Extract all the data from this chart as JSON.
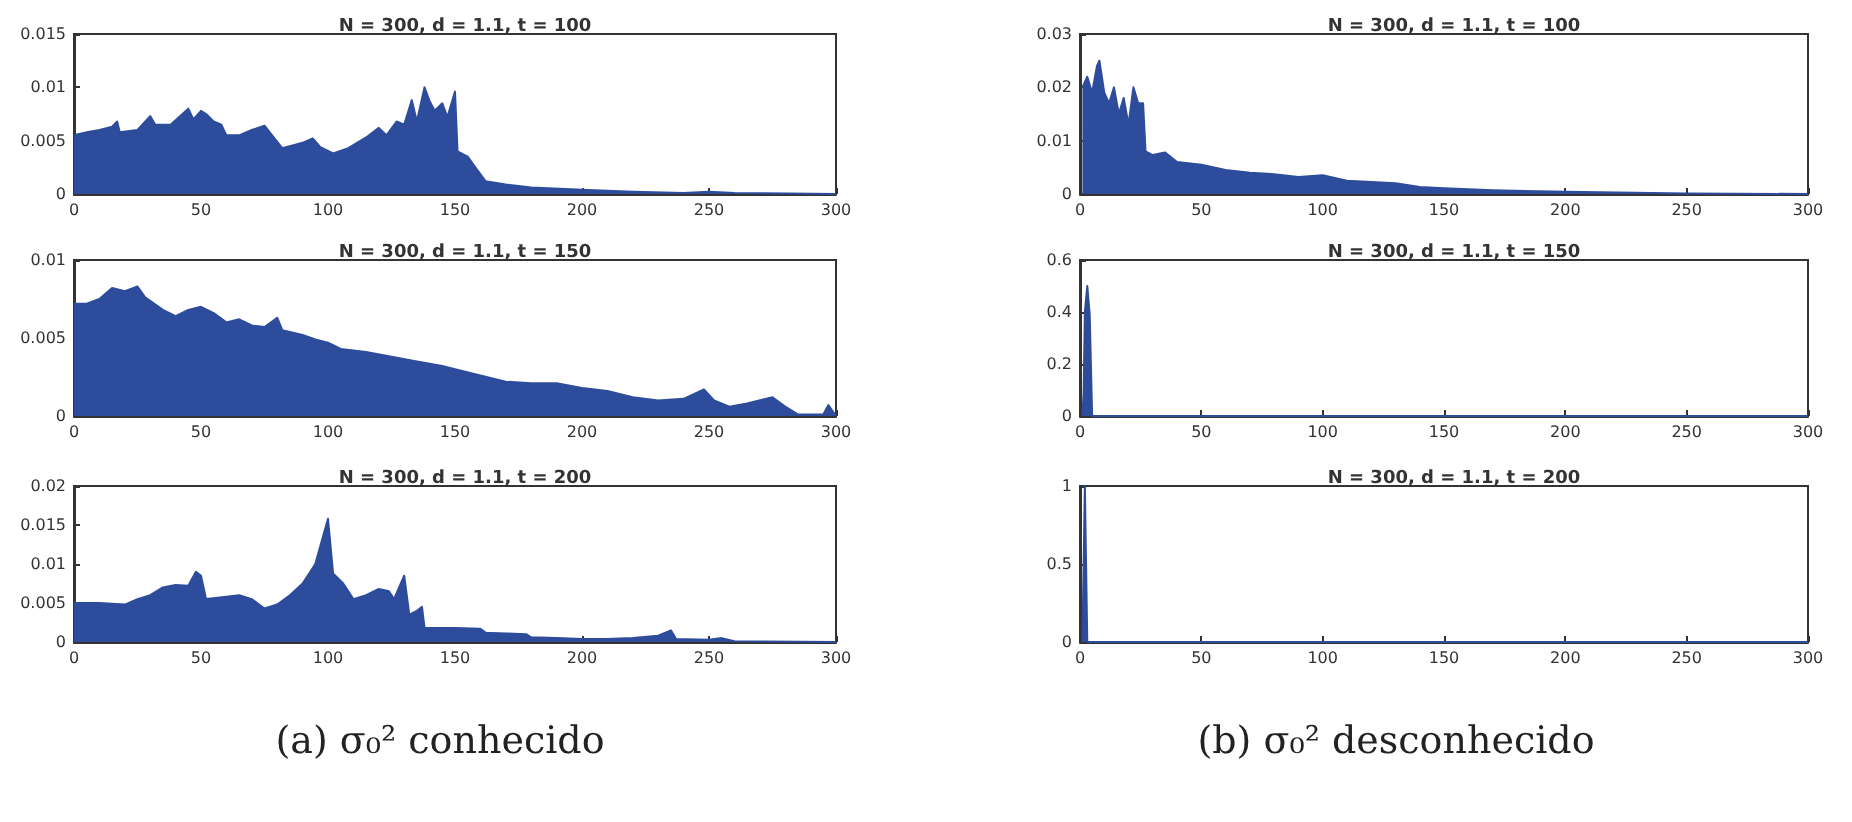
{
  "chart_data": [
    {
      "type": "area",
      "title": "N = 300, d = 1.1, t = 100",
      "color": "#2e4c9c",
      "xlim": [
        0,
        300
      ],
      "xticks": [
        0,
        50,
        100,
        150,
        200,
        250,
        300
      ],
      "ylim": [
        0,
        0.015
      ],
      "yticks": [
        0,
        0.005,
        0.01,
        0.015
      ],
      "x": [
        0,
        5,
        10,
        15,
        17,
        18,
        25,
        30,
        32,
        38,
        45,
        47,
        50,
        52,
        55,
        58,
        60,
        65,
        70,
        75,
        78,
        82,
        90,
        94,
        97,
        102,
        108,
        115,
        120,
        123,
        127,
        130,
        133,
        135,
        138,
        140,
        142,
        145,
        147,
        150,
        151,
        155,
        158,
        162,
        170,
        180,
        200,
        220,
        240,
        250,
        260,
        300
      ],
      "values": [
        0.0055,
        0.0058,
        0.006,
        0.0063,
        0.0068,
        0.0058,
        0.006,
        0.0073,
        0.0065,
        0.0065,
        0.008,
        0.007,
        0.0078,
        0.0075,
        0.0068,
        0.0065,
        0.0055,
        0.0055,
        0.006,
        0.0064,
        0.0055,
        0.0043,
        0.0048,
        0.0052,
        0.0044,
        0.0038,
        0.0043,
        0.0053,
        0.0062,
        0.0055,
        0.0068,
        0.0065,
        0.0088,
        0.0068,
        0.01,
        0.0087,
        0.0078,
        0.0085,
        0.0072,
        0.0096,
        0.004,
        0.0035,
        0.0025,
        0.0012,
        0.0009,
        0.0006,
        0.0004,
        0.0002,
        0.0001,
        0.0002,
        0.0001,
        0
      ]
    },
    {
      "type": "area",
      "title": "N = 300, d = 1.1, t = 150",
      "color": "#2e4c9c",
      "xlim": [
        0,
        300
      ],
      "xticks": [
        0,
        50,
        100,
        150,
        200,
        250,
        300
      ],
      "ylim": [
        0,
        0.01
      ],
      "yticks": [
        0,
        0.005,
        0.01
      ],
      "x": [
        0,
        5,
        10,
        15,
        20,
        25,
        28,
        35,
        40,
        45,
        50,
        55,
        60,
        65,
        70,
        75,
        80,
        82,
        90,
        95,
        100,
        105,
        115,
        125,
        135,
        145,
        150,
        160,
        170,
        180,
        190,
        200,
        210,
        220,
        230,
        240,
        248,
        252,
        258,
        265,
        275,
        280,
        285,
        295,
        297,
        300
      ],
      "values": [
        0.0072,
        0.0072,
        0.0075,
        0.0082,
        0.008,
        0.0083,
        0.0076,
        0.0068,
        0.0064,
        0.0068,
        0.007,
        0.0066,
        0.006,
        0.0062,
        0.0058,
        0.0057,
        0.0063,
        0.0055,
        0.0052,
        0.0049,
        0.0047,
        0.0043,
        0.0041,
        0.0038,
        0.0035,
        0.0032,
        0.003,
        0.0026,
        0.0022,
        0.0021,
        0.0021,
        0.0018,
        0.0016,
        0.0012,
        0.001,
        0.0011,
        0.0017,
        0.001,
        0.0006,
        0.0008,
        0.0012,
        0.0006,
        0.0001,
        0.0001,
        0.0007,
        0
      ]
    },
    {
      "type": "area",
      "title": "N = 300, d = 1.1, t = 200",
      "color": "#2e4c9c",
      "xlim": [
        0,
        300
      ],
      "xticks": [
        0,
        50,
        100,
        150,
        200,
        250,
        300
      ],
      "ylim": [
        0,
        0.02
      ],
      "yticks": [
        0,
        0.005,
        0.01,
        0.015,
        0.02
      ],
      "annotations": [
        "(a) σ₀² conhecido"
      ],
      "x": [
        0,
        10,
        20,
        25,
        30,
        35,
        40,
        45,
        48,
        50,
        52,
        60,
        65,
        70,
        75,
        80,
        85,
        90,
        95,
        98,
        100,
        102,
        106,
        110,
        115,
        120,
        124,
        126,
        130,
        132,
        135,
        137,
        138,
        150,
        160,
        162,
        170,
        178,
        180,
        190,
        200,
        210,
        220,
        230,
        235,
        237,
        250,
        255,
        260,
        300
      ],
      "values": [
        0.005,
        0.005,
        0.0048,
        0.0055,
        0.006,
        0.007,
        0.0073,
        0.0072,
        0.009,
        0.0085,
        0.0055,
        0.0058,
        0.006,
        0.0055,
        0.0043,
        0.0048,
        0.006,
        0.0075,
        0.01,
        0.0135,
        0.0158,
        0.0088,
        0.0075,
        0.0055,
        0.006,
        0.0068,
        0.0065,
        0.0055,
        0.0085,
        0.0035,
        0.004,
        0.0045,
        0.0018,
        0.0018,
        0.0017,
        0.0012,
        0.0011,
        0.001,
        0.0006,
        0.0005,
        0.0004,
        0.0004,
        0.0005,
        0.0008,
        0.0015,
        0.0004,
        0.0003,
        0.0005,
        0.0001,
        0
      ]
    },
    {
      "type": "area",
      "title": "N = 300, d = 1.1, t = 100",
      "color": "#2e4c9c",
      "xlim": [
        0,
        300
      ],
      "xticks": [
        0,
        50,
        100,
        150,
        200,
        250,
        300
      ],
      "ylim": [
        0,
        0.03
      ],
      "yticks": [
        0,
        0.01,
        0.02,
        0.03
      ],
      "x": [
        1,
        3,
        5,
        7,
        8,
        10,
        12,
        14,
        16,
        18,
        20,
        22,
        24,
        26,
        27,
        30,
        35,
        40,
        50,
        60,
        70,
        80,
        90,
        100,
        110,
        130,
        140,
        150,
        170,
        200,
        250,
        300
      ],
      "values": [
        0.02,
        0.022,
        0.019,
        0.024,
        0.025,
        0.019,
        0.017,
        0.02,
        0.015,
        0.018,
        0.013,
        0.02,
        0.017,
        0.017,
        0.008,
        0.0073,
        0.0078,
        0.006,
        0.0055,
        0.0045,
        0.004,
        0.0037,
        0.0032,
        0.0035,
        0.0025,
        0.002,
        0.0013,
        0.0011,
        0.0007,
        0.0004,
        0.0001,
        0
      ]
    },
    {
      "type": "area",
      "title": "N = 300, d = 1.1, t = 150",
      "color": "#2e4c9c",
      "xlim": [
        0,
        300
      ],
      "xticks": [
        0,
        50,
        100,
        150,
        200,
        250,
        300
      ],
      "ylim": [
        0,
        0.6
      ],
      "yticks": [
        0,
        0.2,
        0.4,
        0.6
      ],
      "x": [
        1,
        1.5,
        2,
        3,
        4,
        5,
        300
      ],
      "values": [
        0,
        0.09,
        0.4,
        0.5,
        0.39,
        0,
        0
      ]
    },
    {
      "type": "area",
      "title": "N = 300, d = 1.1, t = 200",
      "color": "#2e4c9c",
      "xlim": [
        0,
        300
      ],
      "xticks": [
        0,
        50,
        100,
        150,
        200,
        250,
        300
      ],
      "ylim": [
        0,
        1
      ],
      "yticks": [
        0,
        0.5,
        1
      ],
      "annotations": [
        "(b) σ₀² desconhecido"
      ],
      "x": [
        1,
        2,
        3,
        300
      ],
      "values": [
        0,
        1,
        0,
        0
      ]
    }
  ]
}
